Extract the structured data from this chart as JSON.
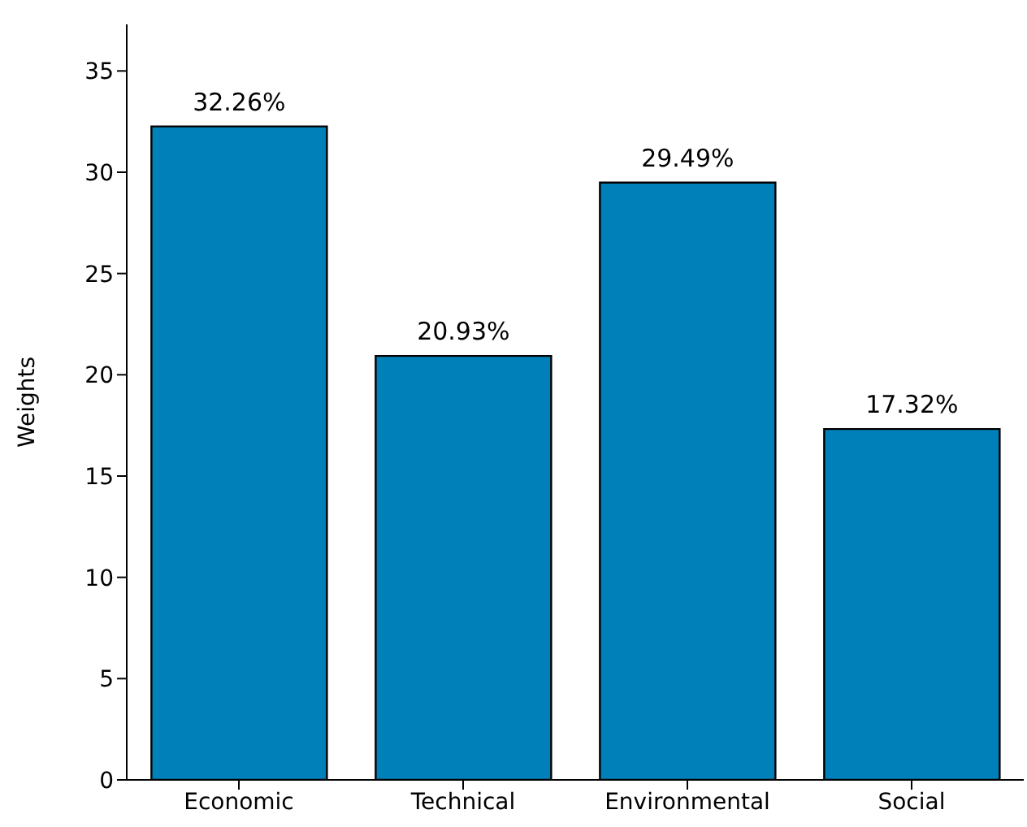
{
  "chart_data": {
    "type": "bar",
    "ylabel": "Weights",
    "categories": [
      "Economic",
      "Technical",
      "Environmental",
      "Social"
    ],
    "values": [
      32.26,
      20.93,
      29.49,
      17.32
    ],
    "color": "#0080b8",
    "value_labels": [
      "32.26%",
      "20.93%",
      "29.49%",
      "17.32%"
    ],
    "ylim": [
      0,
      37.3
    ],
    "yticks": [
      0,
      5,
      10,
      15,
      20,
      25,
      30,
      35
    ],
    "grid": false,
    "legend": false
  }
}
